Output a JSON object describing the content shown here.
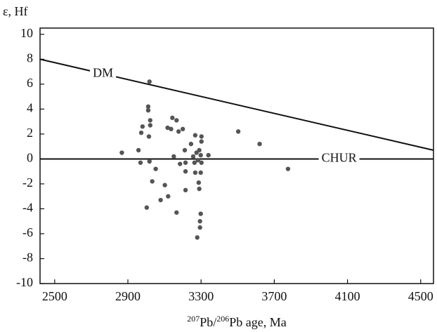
{
  "chart_data": {
    "type": "scatter",
    "ylabel": "ε, Hf",
    "xlabel": [
      "207",
      "Pb/",
      "206",
      "Pb age, Ma"
    ],
    "xlim": [
      2420,
      4570
    ],
    "xticks": [
      2500,
      2900,
      3300,
      3700,
      4100,
      4500
    ],
    "ylim": [
      -10,
      10.5
    ],
    "yticks": [
      -10,
      -8,
      -6,
      -4,
      -2,
      0,
      2,
      4,
      6,
      8,
      10
    ],
    "color": "#555555",
    "reference_lines": [
      {
        "name": "DM",
        "x": [
          2420,
          4570
        ],
        "values": [
          8,
          0.7
        ]
      },
      {
        "name": "CHUR",
        "x": [
          2420,
          4570
        ],
        "values": [
          0,
          0
        ]
      }
    ],
    "x": [
      2867,
      2958,
      2969,
      2973,
      2980,
      3003,
      3011,
      3011,
      3015,
      3018,
      3022,
      3022,
      3018,
      3033,
      3052,
      3079,
      3102,
      3120,
      3117,
      3136,
      3143,
      3151,
      3166,
      3166,
      3177,
      3185,
      3200,
      3211,
      3215,
      3215,
      3215,
      3245,
      3257,
      3264,
      3268,
      3268,
      3275,
      3279,
      3283,
      3287,
      3290,
      3290,
      3298,
      3298,
      3298,
      3294,
      3294,
      3302,
      3302,
      3302,
      3340,
      3503,
      3620,
      3775
    ],
    "values": [
      0.5,
      0.7,
      -0.3,
      2.1,
      2.6,
      -3.9,
      4.2,
      3.9,
      1.8,
      -0.2,
      3.1,
      2.7,
      6.2,
      -1.8,
      -0.8,
      -3.3,
      -2.1,
      -3.0,
      2.5,
      2.4,
      3.3,
      0.2,
      3.1,
      -4.3,
      2.2,
      -0.4,
      2.4,
      0.7,
      -1.0,
      -0.3,
      -2.5,
      1.2,
      0.2,
      -0.3,
      1.9,
      -1.1,
      0.5,
      -6.3,
      -0.1,
      -1.9,
      -2.4,
      0.7,
      0.3,
      -1.1,
      -4.4,
      -5.0,
      -5.5,
      1.8,
      1.4,
      -0.3,
      0.3,
      2.2,
      1.2,
      -0.8
    ]
  }
}
